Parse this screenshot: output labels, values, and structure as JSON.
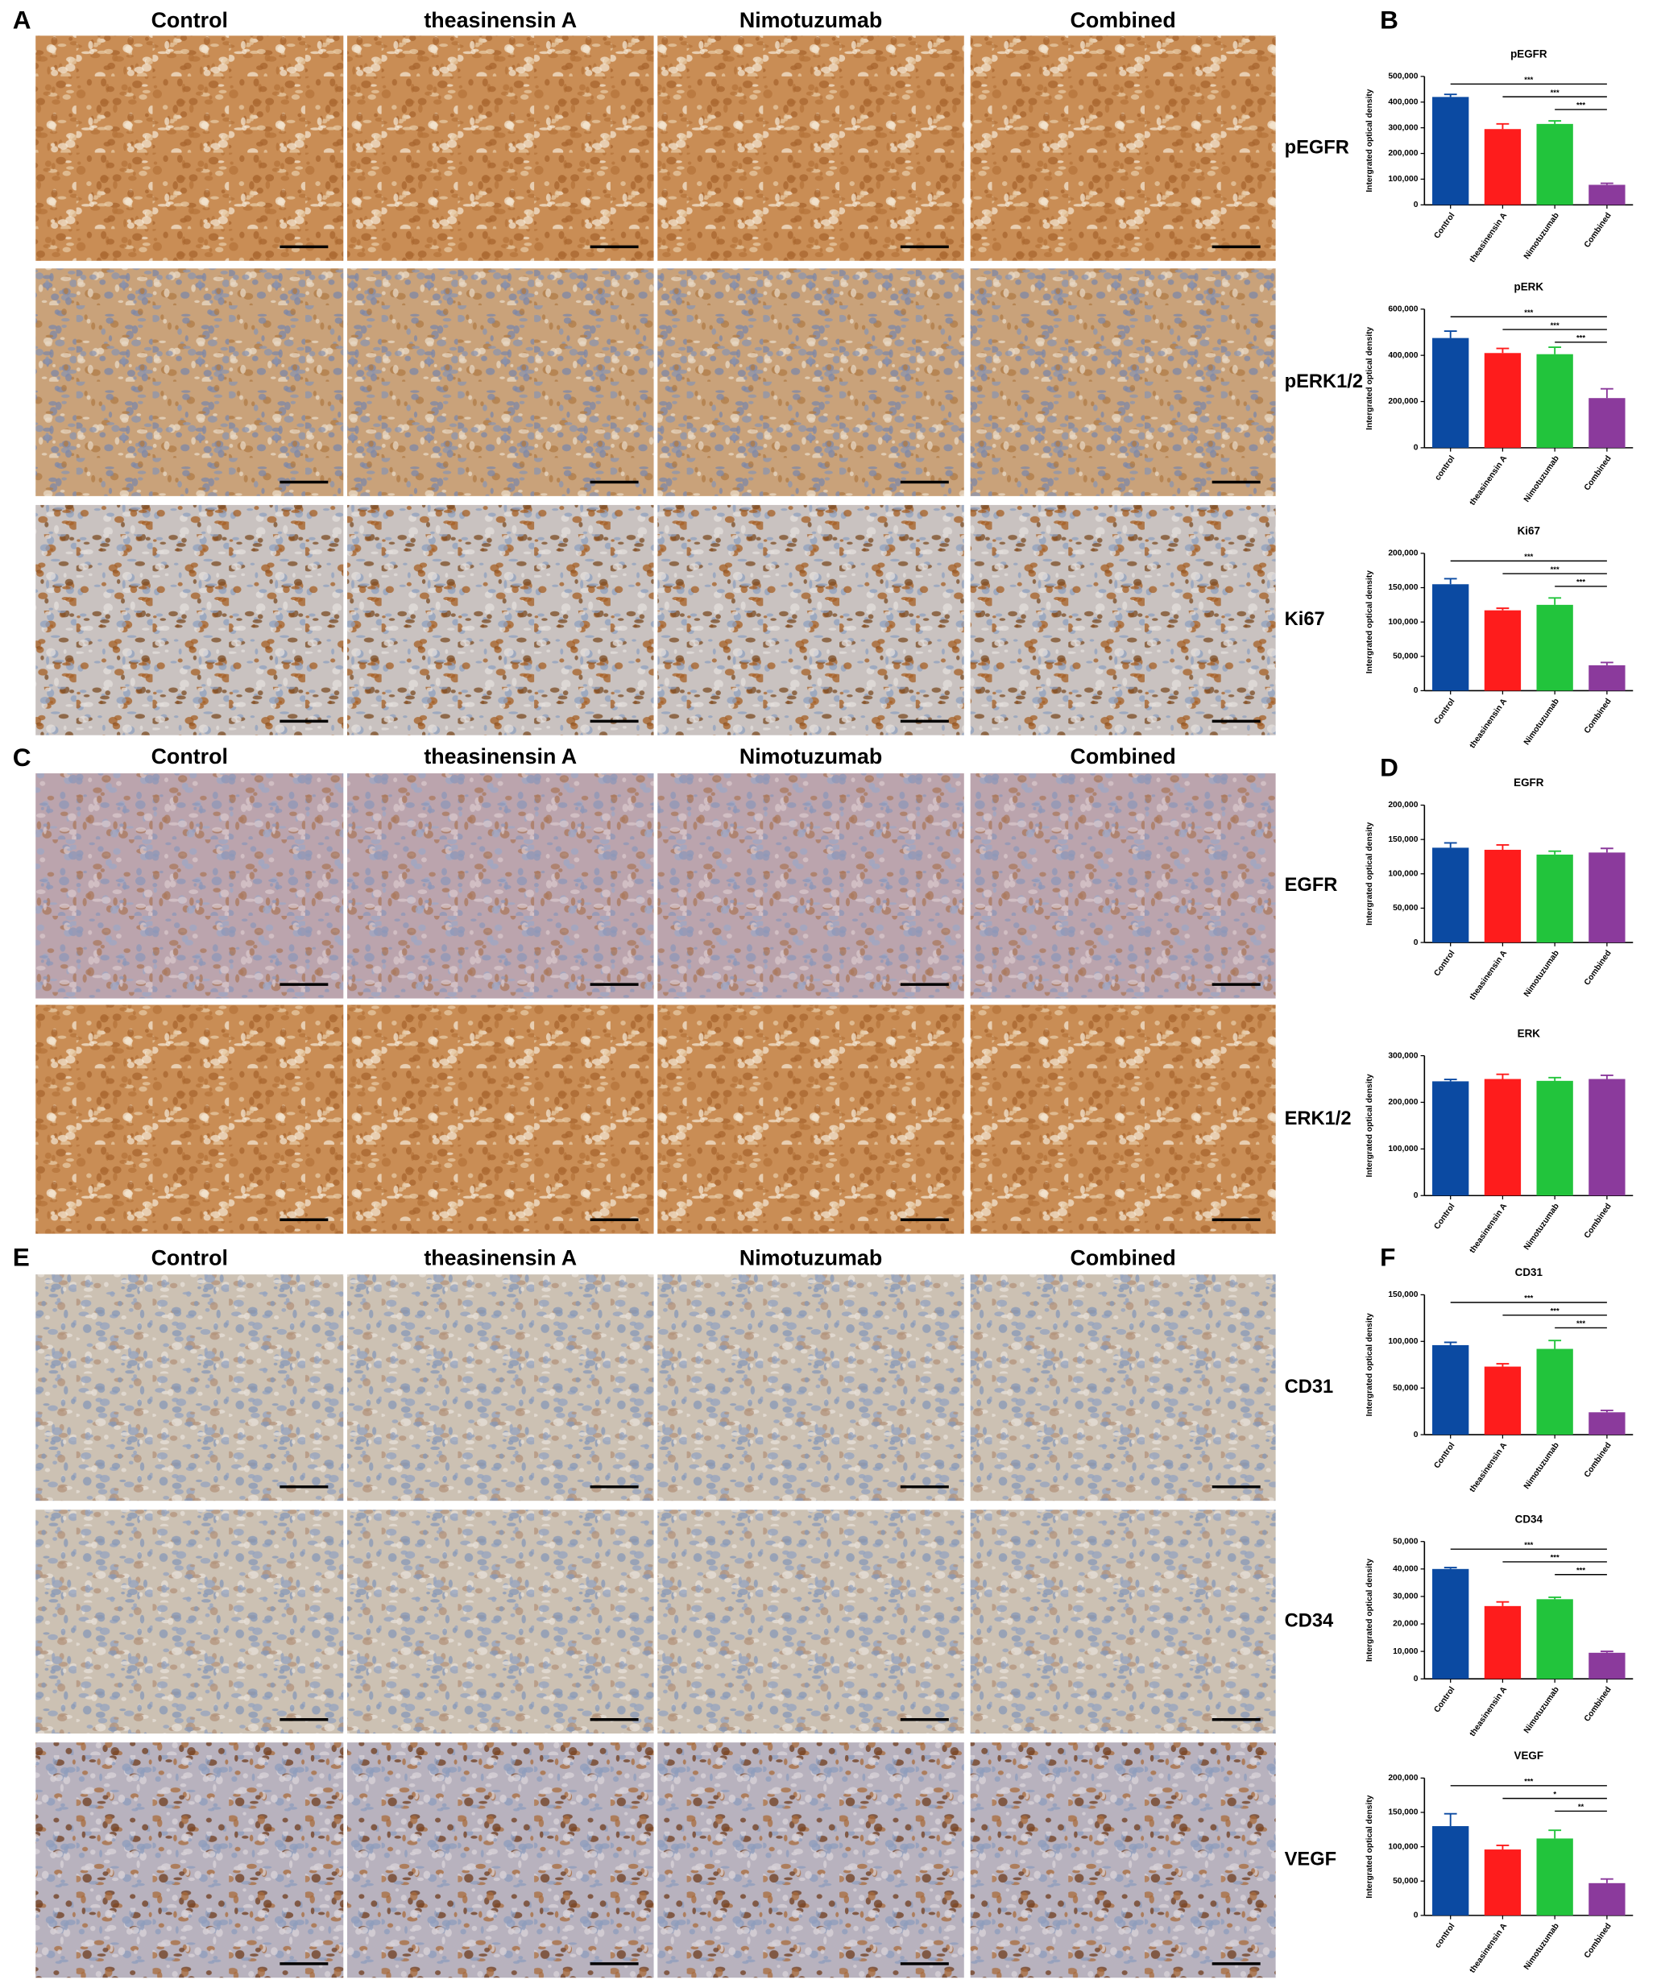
{
  "panel_letters": [
    "A",
    "B",
    "C",
    "D",
    "E",
    "F"
  ],
  "micrographs": [
    {
      "columns": [
        "Control",
        "theasinensin A",
        "Nimotuzumab",
        "Combined"
      ],
      "rows": [
        "pEGFR",
        "pERK1/2",
        "Ki67"
      ]
    },
    {
      "columns": [
        "Control",
        "theasinensin A",
        "Nimotuzumab",
        "Combined"
      ],
      "rows": [
        "EGFR",
        "ERK1/2"
      ]
    },
    {
      "columns": [
        "Control",
        "theasinensin A",
        "Nimotuzumab",
        "Combined"
      ],
      "rows": [
        "CD31",
        "CD34",
        "VEGF"
      ]
    }
  ],
  "chart_data": [
    {
      "type": "bar",
      "title": "pEGFR",
      "y_label": "Intergrated optical density",
      "categories": [
        "Control",
        "theasinensin A",
        "Nimotuzumab",
        "Combined"
      ],
      "values": [
        420000,
        295000,
        315000,
        78000
      ],
      "errors": [
        10000,
        20000,
        12000,
        6000
      ],
      "colors": [
        "#0b4aa2",
        "#fe1c1c",
        "#22c43c",
        "#8b3a9c"
      ],
      "ylim": [
        0,
        500000
      ],
      "yticks": [
        0,
        {
          "value": 100000,
          "label": "100,000"
        },
        {
          "value": 200000,
          "label": "200,000"
        },
        {
          "value": 300000,
          "label": "300,000"
        },
        {
          "value": 400000,
          "label": "400,000"
        },
        {
          "value": 500000,
          "label": "500,000"
        }
      ],
      "significance": [
        {
          "from": 0,
          "to": 3,
          "label": "***"
        },
        {
          "from": 1,
          "to": 3,
          "label": "***"
        },
        {
          "from": 2,
          "to": 3,
          "label": "***"
        }
      ]
    },
    {
      "type": "bar",
      "title": "pERK",
      "y_label": "Intergrated optical density",
      "categories": [
        "control",
        "theasinensin A",
        "Nimotuzumab",
        "Combined"
      ],
      "values": [
        475000,
        410000,
        405000,
        215000
      ],
      "errors": [
        30000,
        20000,
        30000,
        40000
      ],
      "colors": [
        "#0b4aa2",
        "#fe1c1c",
        "#22c43c",
        "#8b3a9c"
      ],
      "ylim": [
        0,
        600000
      ],
      "yticks": [
        0,
        {
          "value": 200000,
          "label": "200,000"
        },
        {
          "value": 400000,
          "label": "400,000"
        },
        {
          "value": 600000,
          "label": "600,000"
        }
      ],
      "significance": [
        {
          "from": 0,
          "to": 3,
          "label": "***"
        },
        {
          "from": 1,
          "to": 3,
          "label": "***"
        },
        {
          "from": 2,
          "to": 3,
          "label": "***"
        }
      ]
    },
    {
      "type": "bar",
      "title": "Ki67",
      "y_label": "Intergrated optical density",
      "categories": [
        "Control",
        "theasinensin A",
        "Nimotuzumab",
        "Combined"
      ],
      "values": [
        155000,
        117000,
        125000,
        37000
      ],
      "errors": [
        8000,
        3000,
        10000,
        4000
      ],
      "colors": [
        "#0b4aa2",
        "#fe1c1c",
        "#22c43c",
        "#8b3a9c"
      ],
      "ylim": [
        0,
        200000
      ],
      "yticks": [
        0,
        {
          "value": 50000,
          "label": "50,000"
        },
        {
          "value": 100000,
          "label": "100,000"
        },
        {
          "value": 150000,
          "label": "150,000"
        },
        {
          "value": 200000,
          "label": "200,000"
        }
      ],
      "significance": [
        {
          "from": 0,
          "to": 3,
          "label": "***"
        },
        {
          "from": 1,
          "to": 3,
          "label": "***"
        },
        {
          "from": 2,
          "to": 3,
          "label": "***"
        }
      ]
    },
    {
      "type": "bar",
      "title": "EGFR",
      "y_label": "Intergrated optical density",
      "categories": [
        "Control",
        "theasinensin A",
        "Nimotuzumab",
        "Combined"
      ],
      "values": [
        138000,
        135000,
        128000,
        131000
      ],
      "errors": [
        7000,
        7000,
        5000,
        6000
      ],
      "colors": [
        "#0b4aa2",
        "#fe1c1c",
        "#22c43c",
        "#8b3a9c"
      ],
      "ylim": [
        0,
        200000
      ],
      "yticks": [
        0,
        {
          "value": 50000,
          "label": "50,000"
        },
        {
          "value": 100000,
          "label": "100,000"
        },
        {
          "value": 150000,
          "label": "150,000"
        },
        {
          "value": 200000,
          "label": "200,000"
        }
      ]
    },
    {
      "type": "bar",
      "title": "ERK",
      "y_label": "Intergrated optical density",
      "categories": [
        "Control",
        "theasinensin A",
        "Nimotuzumab",
        "Combined"
      ],
      "values": [
        245000,
        250000,
        246000,
        250000
      ],
      "errors": [
        4000,
        10000,
        7000,
        8000
      ],
      "colors": [
        "#0b4aa2",
        "#fe1c1c",
        "#22c43c",
        "#8b3a9c"
      ],
      "ylim": [
        0,
        300000
      ],
      "yticks": [
        0,
        {
          "value": 100000,
          "label": "100,000"
        },
        {
          "value": 200000,
          "label": "200,000"
        },
        {
          "value": 300000,
          "label": "300,000"
        }
      ]
    },
    {
      "type": "bar",
      "title": "CD31",
      "y_label": "Intergrated optical density",
      "categories": [
        "Control",
        "theasinensin A",
        "Nimotuzumab",
        "Combined"
      ],
      "values": [
        96000,
        73000,
        92000,
        24000
      ],
      "errors": [
        3000,
        3000,
        9000,
        2000
      ],
      "colors": [
        "#0b4aa2",
        "#fe1c1c",
        "#22c43c",
        "#8b3a9c"
      ],
      "ylim": [
        0,
        150000
      ],
      "yticks": [
        0,
        {
          "value": 50000,
          "label": "50,000"
        },
        {
          "value": 100000,
          "label": "100,000"
        },
        {
          "value": 150000,
          "label": "150,000"
        }
      ],
      "significance": [
        {
          "from": 0,
          "to": 3,
          "label": "***"
        },
        {
          "from": 1,
          "to": 3,
          "label": "***"
        },
        {
          "from": 2,
          "to": 3,
          "label": "***"
        }
      ]
    },
    {
      "type": "bar",
      "title": "CD34",
      "y_label": "Intergrated optical density",
      "categories": [
        "Control",
        "theasinensin A",
        "Nimotuzumab",
        "Combined"
      ],
      "values": [
        40000,
        26500,
        29000,
        9500
      ],
      "errors": [
        500,
        1500,
        700,
        500
      ],
      "colors": [
        "#0b4aa2",
        "#fe1c1c",
        "#22c43c",
        "#8b3a9c"
      ],
      "ylim": [
        0,
        50000
      ],
      "yticks": [
        0,
        {
          "value": 10000,
          "label": "10,000"
        },
        {
          "value": 20000,
          "label": "20,000"
        },
        {
          "value": 30000,
          "label": "30,000"
        },
        {
          "value": 40000,
          "label": "40,000"
        },
        {
          "value": 50000,
          "label": "50,000"
        }
      ],
      "significance": [
        {
          "from": 0,
          "to": 3,
          "label": "***"
        },
        {
          "from": 1,
          "to": 3,
          "label": "***"
        },
        {
          "from": 2,
          "to": 3,
          "label": "***"
        }
      ]
    },
    {
      "type": "bar",
      "title": "VEGF",
      "y_label": "Intergrated optical density",
      "categories": [
        "control",
        "theasinensin A",
        "Nimotuzumab",
        "Combined"
      ],
      "values": [
        130000,
        96000,
        112000,
        47000
      ],
      "errors": [
        18000,
        6000,
        12000,
        6000
      ],
      "colors": [
        "#0b4aa2",
        "#fe1c1c",
        "#22c43c",
        "#8b3a9c"
      ],
      "ylim": [
        0,
        200000
      ],
      "yticks": [
        0,
        {
          "value": 50000,
          "label": "50,000"
        },
        {
          "value": 100000,
          "label": "100,000"
        },
        {
          "value": 150000,
          "label": "150,000"
        },
        {
          "value": 200000,
          "label": "200,000"
        }
      ],
      "significance": [
        {
          "from": 0,
          "to": 3,
          "label": "***"
        },
        {
          "from": 1,
          "to": 3,
          "label": "*"
        },
        {
          "from": 2,
          "to": 3,
          "label": "**"
        }
      ]
    }
  ]
}
